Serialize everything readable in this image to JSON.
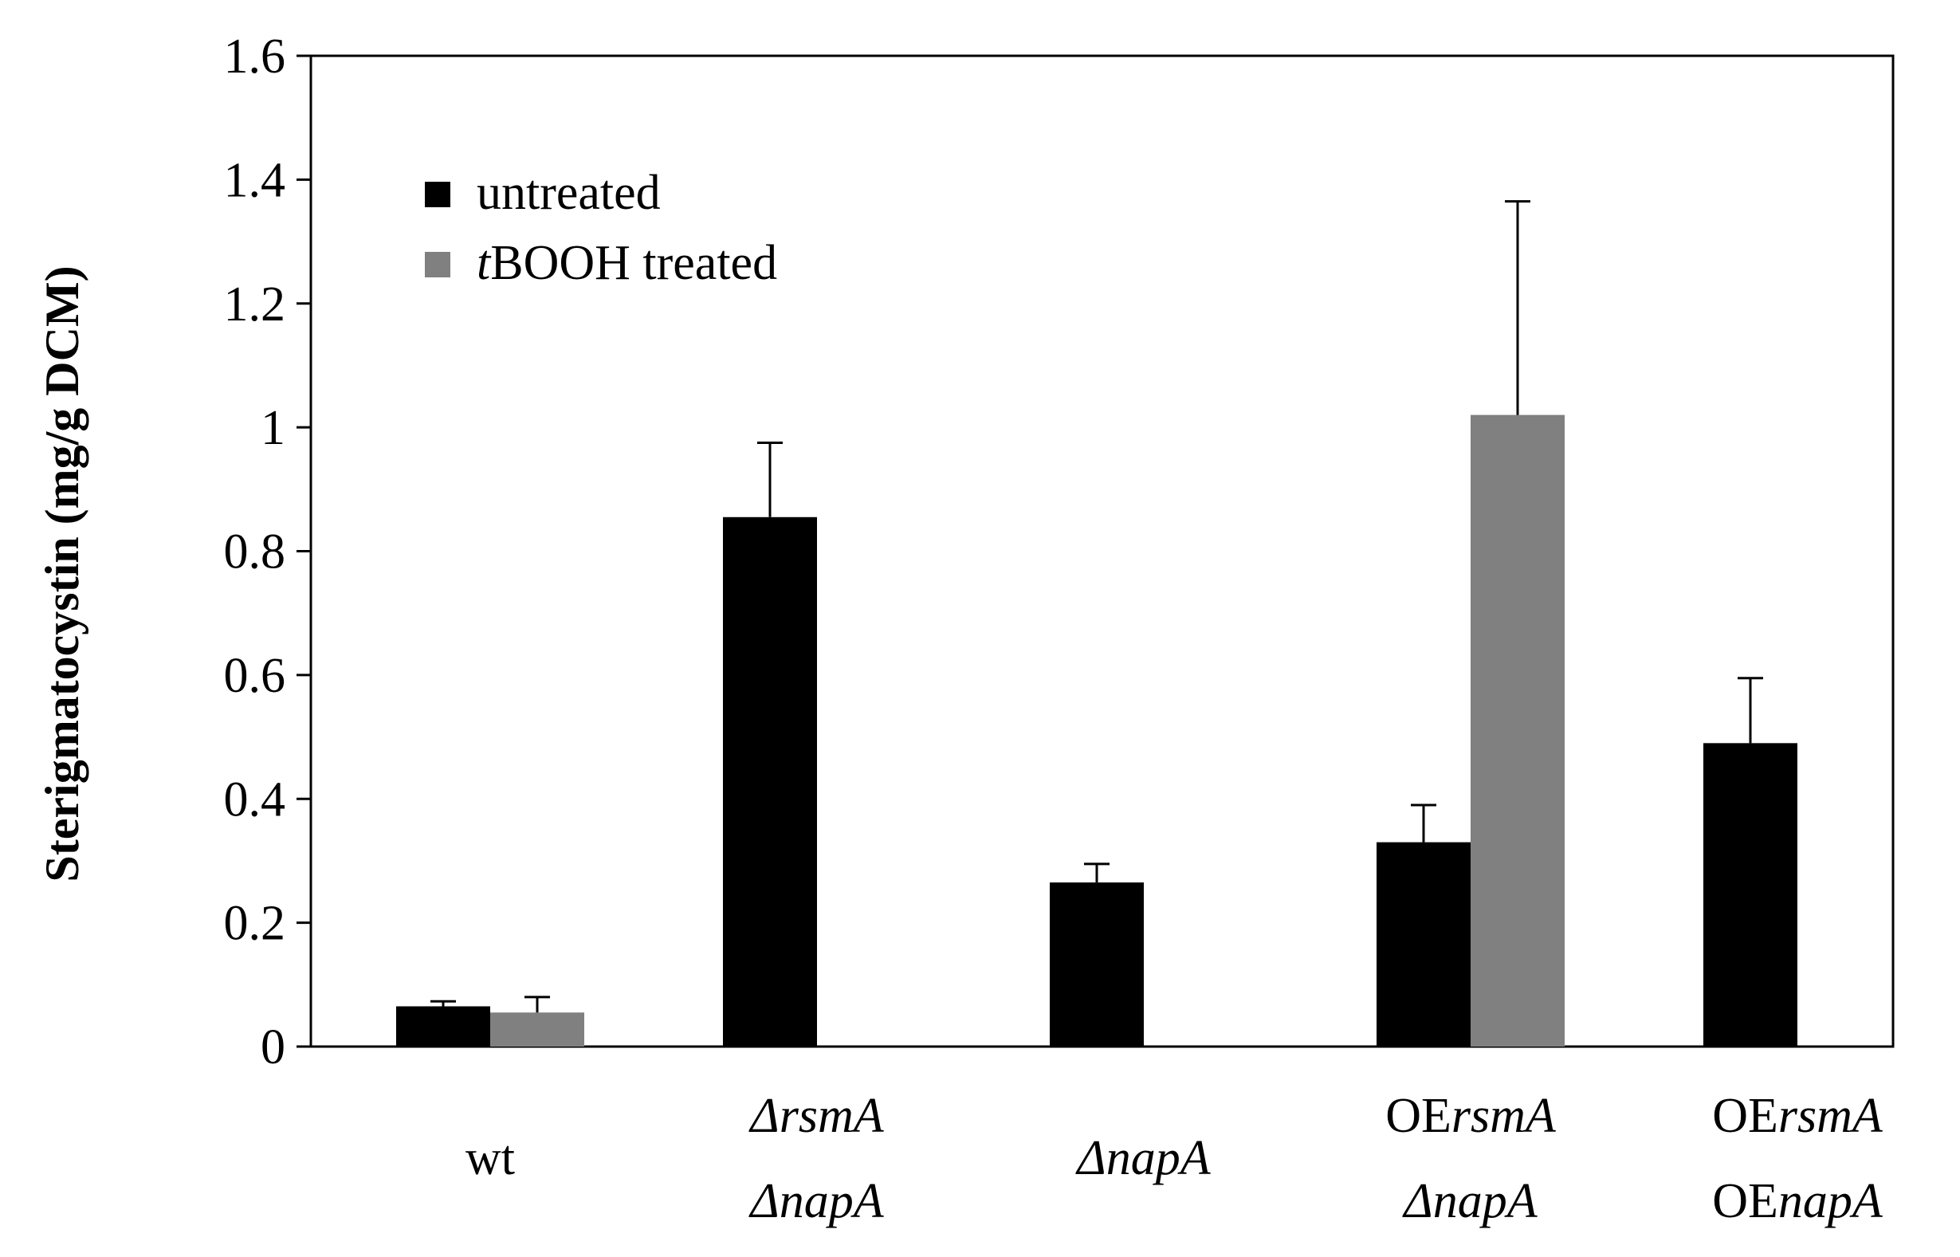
{
  "chart_data": {
    "type": "bar",
    "title": "",
    "xlabel": "",
    "ylabel": "Sterigmatocystin (mg/g DCM)",
    "ylim": [
      0,
      1.6
    ],
    "yticks": [
      "0",
      "0.2",
      "0.4",
      "0.6",
      "0.8",
      "1",
      "1.2",
      "1.4",
      "1.6"
    ],
    "grid": false,
    "legend_position": "top-left",
    "categories": [
      {
        "lines": [
          [
            {
              "t": "wt",
              "i": false
            }
          ]
        ]
      },
      {
        "lines": [
          [
            {
              "t": "Δ",
              "i": true
            },
            {
              "t": "rsmA",
              "i": true
            }
          ],
          [
            {
              "t": "Δ",
              "i": true
            },
            {
              "t": "napA",
              "i": true
            }
          ]
        ]
      },
      {
        "lines": [
          [
            {
              "t": "Δ",
              "i": true
            },
            {
              "t": "napA",
              "i": true
            }
          ]
        ]
      },
      {
        "lines": [
          [
            {
              "t": "OE",
              "i": false
            },
            {
              "t": "rsmA",
              "i": true
            }
          ],
          [
            {
              "t": "Δ",
              "i": true
            },
            {
              "t": "napA",
              "i": true
            }
          ]
        ]
      },
      {
        "lines": [
          [
            {
              "t": "OE",
              "i": false
            },
            {
              "t": "rsmA",
              "i": true
            }
          ],
          [
            {
              "t": "OE",
              "i": false
            },
            {
              "t": "napA",
              "i": true
            }
          ]
        ]
      }
    ],
    "series": [
      {
        "name": "untreated",
        "legend_parts": [
          {
            "t": "untreated",
            "i": false
          }
        ],
        "color": "#000000",
        "values": [
          0.065,
          0.855,
          0.265,
          0.33,
          0.49
        ],
        "errors": [
          0.008,
          0.12,
          0.03,
          0.06,
          0.105
        ]
      },
      {
        "name": "tBOOH treated",
        "legend_parts": [
          {
            "t": "t",
            "i": true
          },
          {
            "t": "BOOH treated",
            "i": false
          }
        ],
        "color": "#808080",
        "values": [
          0.055,
          null,
          null,
          1.02,
          null
        ],
        "errors": [
          0.025,
          null,
          null,
          0.345,
          null
        ]
      }
    ]
  }
}
